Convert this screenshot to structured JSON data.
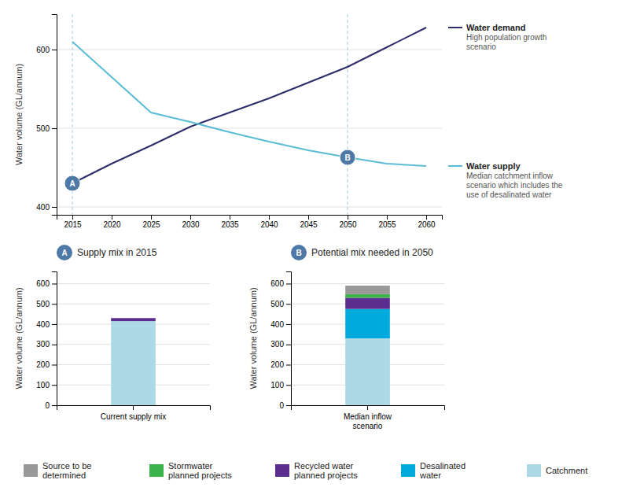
{
  "chart_data": [
    {
      "type": "line",
      "ylabel": "Water volume (GL/annum)",
      "x": [
        2015,
        2020,
        2025,
        2030,
        2035,
        2040,
        2045,
        2050,
        2055,
        2060
      ],
      "series": [
        {
          "name": "Water demand",
          "description": "High population growth\nscenario",
          "color": "#2d2d6b",
          "values": [
            430,
            455,
            478,
            502,
            520,
            538,
            558,
            578,
            603,
            628
          ]
        },
        {
          "name": "Water supply",
          "description": "Median catchment inflow\nscenario which includes the\nuse of desalinated water",
          "color": "#5bbcd6",
          "values": [
            610,
            565,
            520,
            508,
            495,
            483,
            472,
            463,
            455,
            452
          ]
        }
      ],
      "annotations": [
        {
          "text": "A",
          "x": 2015,
          "y": 430
        },
        {
          "text": "B",
          "x": 2050,
          "y": 463
        }
      ],
      "xlim": [
        2013,
        2062
      ],
      "xticks": [
        2015,
        2020,
        2025,
        2030,
        2035,
        2040,
        2045,
        2050,
        2055,
        2060
      ],
      "ylim": [
        390,
        645
      ],
      "yticks": [
        400,
        500,
        600
      ],
      "grid": true,
      "legend": "right"
    },
    {
      "type": "bar",
      "stacked": true,
      "title": "Supply mix in 2015",
      "annotations": [
        {
          "text": "A"
        }
      ],
      "ylabel": "Water volume (GL/annum)",
      "categories": [
        "Current supply mix"
      ],
      "series": [
        {
          "name": "Catchment",
          "color": "#add8e6",
          "values": [
            415
          ]
        },
        {
          "name": "Recycled water\nplanned projects",
          "color": "#5b2d8e",
          "values": [
            15
          ]
        }
      ],
      "ylim": [
        0,
        660
      ],
      "yticks": [
        0,
        100,
        200,
        300,
        400,
        500,
        600
      ],
      "grid": true
    },
    {
      "type": "bar",
      "stacked": true,
      "title": "Potential mix needed in 2050",
      "annotations": [
        {
          "text": "B"
        }
      ],
      "ylabel": "Water volume (GL/annum)",
      "categories": [
        "Median inflow\nscenario"
      ],
      "series": [
        {
          "name": "Catchment",
          "color": "#add8e6",
          "values": [
            330
          ]
        },
        {
          "name": "Desalinated\nwater",
          "color": "#00aadd",
          "values": [
            145
          ]
        },
        {
          "name": "Recycled water\nplanned projects",
          "color": "#5b2d8e",
          "values": [
            55
          ]
        },
        {
          "name": "Stormwater\nplanned projects",
          "color": "#3cb44b",
          "values": [
            18
          ]
        },
        {
          "name": "Source to be\ndetermined",
          "color": "#999999",
          "values": [
            42
          ]
        }
      ],
      "ylim": [
        0,
        660
      ],
      "yticks": [
        0,
        100,
        200,
        300,
        400,
        500,
        600
      ],
      "grid": true,
      "legend": "bottom"
    }
  ]
}
